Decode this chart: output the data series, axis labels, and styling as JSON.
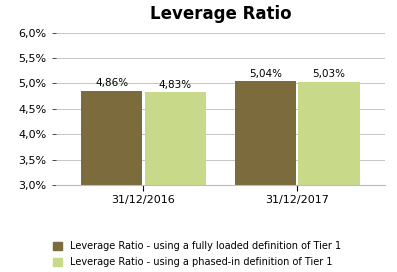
{
  "title": "Leverage Ratio",
  "groups": [
    "31/12/2016",
    "31/12/2017"
  ],
  "series": [
    {
      "label": "Leverage Ratio - using a fully loaded definition of Tier 1",
      "values": [
        4.86,
        5.04
      ],
      "color": "#7B6B3D"
    },
    {
      "label": "Leverage Ratio - using a phased-in definition of Tier 1",
      "values": [
        4.83,
        5.03
      ],
      "color": "#C9D98A"
    }
  ],
  "ylim": [
    3.0,
    6.0
  ],
  "ybase": 3.0,
  "yticks": [
    3.0,
    3.5,
    4.0,
    4.5,
    5.0,
    5.5,
    6.0
  ],
  "bar_width": 0.28,
  "group_positions": [
    0.35,
    1.05
  ],
  "title_fontsize": 12,
  "label_fontsize": 7.5,
  "tick_fontsize": 8,
  "legend_fontsize": 7,
  "background_color": "#FFFFFF",
  "grid_color": "#BBBBBB"
}
